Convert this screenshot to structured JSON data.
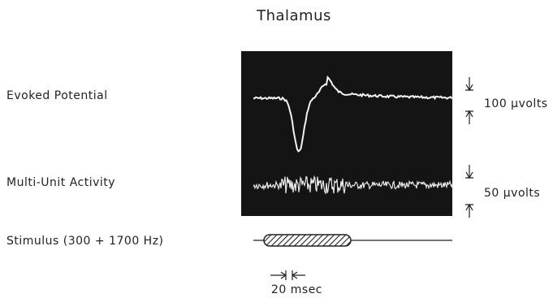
{
  "figure": {
    "title": "Thalamus",
    "rows": [
      {
        "label": "Evoked Potential",
        "scale": "100 μvolts"
      },
      {
        "label": "Multi-Unit Activity",
        "scale": "50 μvolts"
      },
      {
        "label": "Stimulus (300 + 1700 Hz)"
      }
    ],
    "time_scale": "20 msec"
  }
}
